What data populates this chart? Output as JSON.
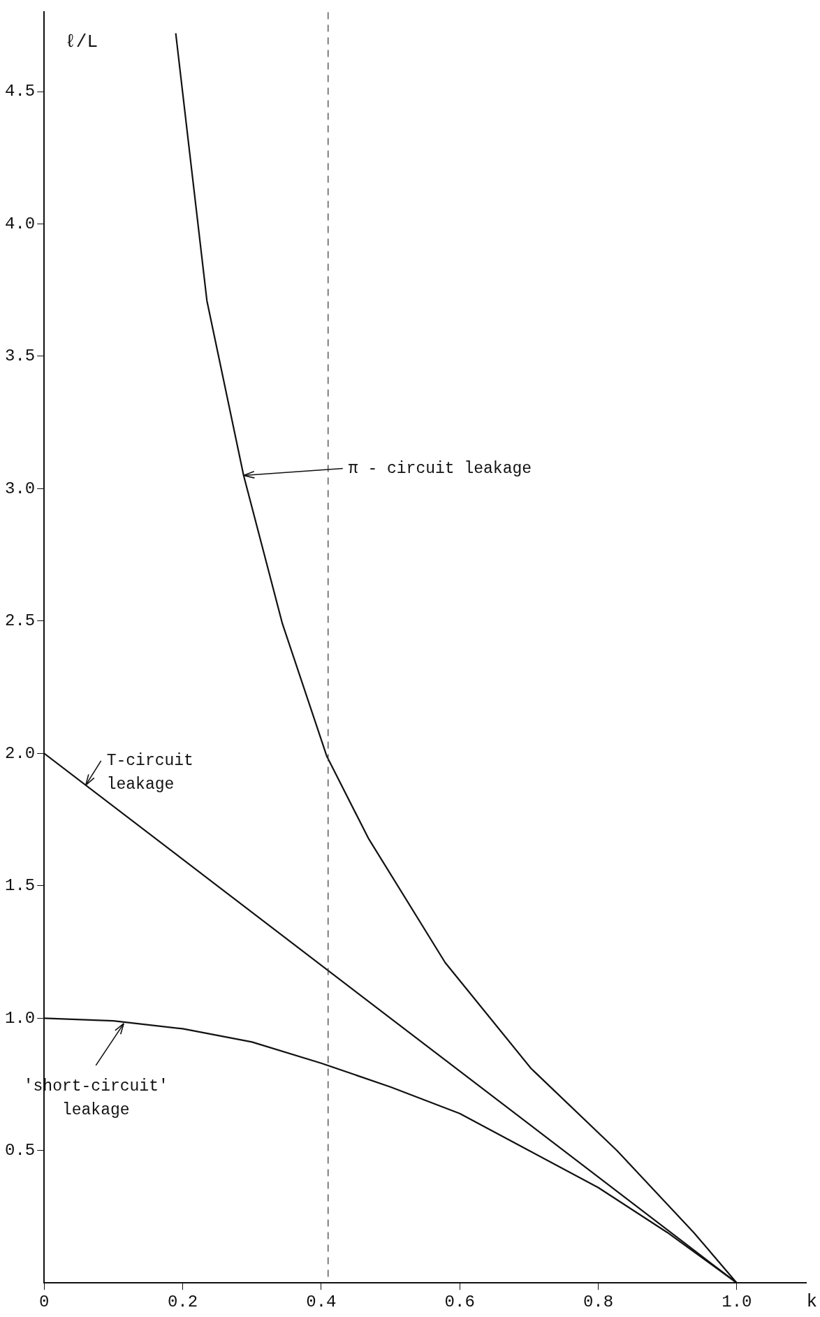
{
  "chart_data": {
    "type": "line",
    "xlabel": "k",
    "ylabel": "ℓ/L",
    "xlim": [
      0,
      1.1
    ],
    "ylim": [
      0,
      4.8
    ],
    "xticks": [
      0,
      {
        "value": 0.2,
        "label": "0.2"
      },
      {
        "value": 0.4,
        "label": "0.4"
      },
      {
        "value": 0.6,
        "label": "0.6"
      },
      {
        "value": 0.8,
        "label": "0.8"
      },
      {
        "value": 1,
        "label": "1.0"
      }
    ],
    "yticks": [
      {
        "value": 0.5,
        "label": "0.5"
      },
      {
        "value": 1,
        "label": "1.0"
      },
      {
        "value": 1.5,
        "label": "1.5"
      },
      {
        "value": 2,
        "label": "2.0"
      },
      {
        "value": 2.5,
        "label": "2.5"
      },
      {
        "value": 3,
        "label": "3.0"
      },
      {
        "value": 3.5,
        "label": "3.5"
      },
      {
        "value": 4,
        "label": "4.0"
      },
      {
        "value": 4.5,
        "label": "4.5"
      }
    ],
    "grid": false,
    "legend": false,
    "marker": "none",
    "line_style": "solid",
    "series": [
      {
        "color": "#111111",
        "x": [
          0.19,
          0.235,
          0.288,
          0.344,
          0.408,
          0.468,
          0.579,
          0.703,
          0.827,
          0.938,
          1.0
        ],
        "values": [
          4.72,
          3.71,
          3.05,
          2.49,
          1.99,
          1.68,
          1.21,
          0.81,
          0.5,
          0.19,
          0
        ]
      },
      {
        "color": "#111111",
        "x": [
          0,
          0.5,
          1.0
        ],
        "values": [
          2,
          1,
          0
        ]
      },
      {
        "color": "#111111",
        "x": [
          0,
          0.1,
          0.2,
          0.3,
          0.4,
          0.5,
          0.6,
          0.7,
          0.8,
          0.9,
          1.0
        ],
        "values": [
          1,
          0.99,
          0.96,
          0.91,
          0.83,
          0.74,
          0.64,
          0.5,
          0.36,
          0.19,
          0
        ]
      }
    ],
    "ref_lines": [
      {
        "axis": "x",
        "value": 0.41,
        "line_style": "dashed",
        "color": "#333333"
      }
    ],
    "annotations": [
      {
        "text": "π - circuit leakage",
        "x": 0.288,
        "y": 3.05
      },
      {
        "text": "T-circuit\nleakage",
        "x": 0.06,
        "y": 1.88
      },
      {
        "text": "'short-circuit'\nleakage",
        "x": 0.115,
        "y": 0.98
      }
    ]
  }
}
